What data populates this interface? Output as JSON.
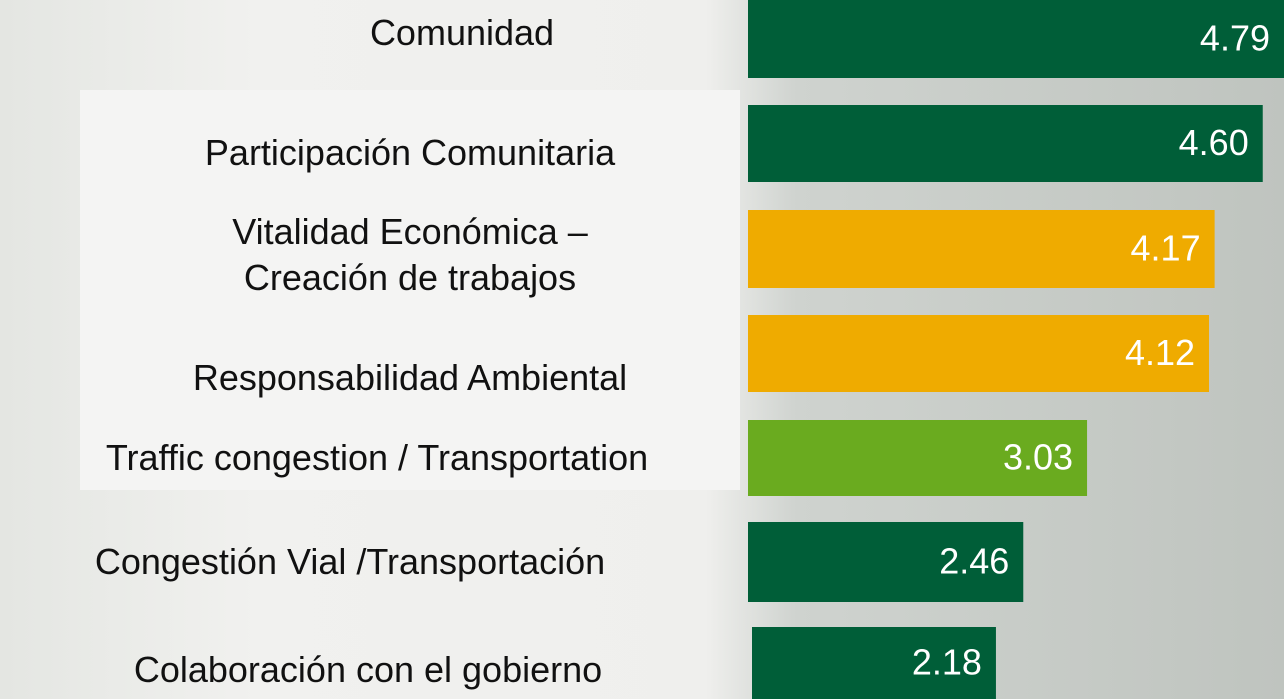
{
  "chart_data": {
    "type": "bar",
    "orientation": "horizontal",
    "categories": [
      "Comunidad",
      "Participación Comunitaria",
      "Vitalidad Económica – Creación de trabajos",
      "Responsabilidad Ambiental",
      "Traffic congestion / Transportation",
      "Congestión Vial /Transportación",
      "Colaboración con el gobierno"
    ],
    "values": [
      4.79,
      4.6,
      4.17,
      4.12,
      3.03,
      2.46,
      2.18
    ],
    "value_labels": [
      "4.79",
      "4.60",
      "4.17",
      "4.12",
      "3.03",
      "2.46",
      "2.18"
    ],
    "colors": [
      "#005e38",
      "#005e38",
      "#efab00",
      "#efab00",
      "#6aab1f",
      "#005e38",
      "#005e38"
    ]
  }
}
